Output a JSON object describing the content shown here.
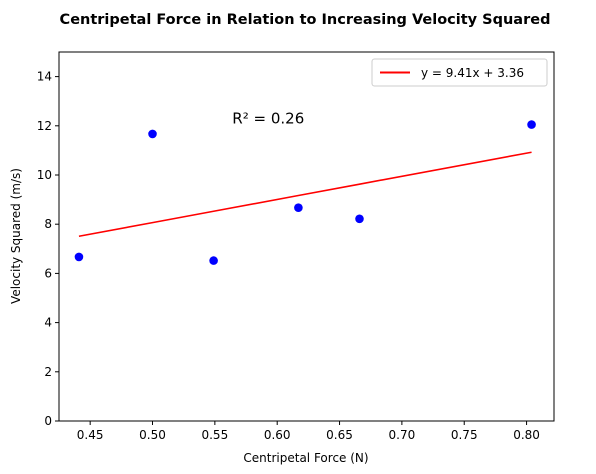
{
  "chart_data": {
    "type": "scatter",
    "title": "Centripetal Force in Relation to Increasing Velocity Squared",
    "xlabel": "Centripetal Force (N)",
    "ylabel": "Velocity Squared (m/s)",
    "xlim": [
      0.425,
      0.822
    ],
    "ylim": [
      0,
      15
    ],
    "xticks": [
      0.45,
      0.5,
      0.55,
      0.6,
      0.65,
      0.7,
      0.75,
      0.8
    ],
    "xtick_labels": [
      "0.45",
      "0.50",
      "0.55",
      "0.60",
      "0.65",
      "0.70",
      "0.75",
      "0.80"
    ],
    "yticks": [
      0,
      2,
      4,
      6,
      8,
      10,
      12,
      14
    ],
    "ytick_labels": [
      "0",
      "2",
      "4",
      "6",
      "8",
      "10",
      "12",
      "14"
    ],
    "grid": false,
    "points": {
      "color": "#0000ff",
      "x": [
        0.441,
        0.5,
        0.549,
        0.617,
        0.666,
        0.804
      ],
      "y": [
        6.67,
        11.67,
        6.52,
        8.67,
        8.22,
        12.05
      ]
    },
    "fit_line": {
      "label": "y = 9.41x + 3.36",
      "color": "#ff0000",
      "slope": 9.41,
      "intercept": 3.36,
      "x": [
        0.441,
        0.5,
        0.549,
        0.617,
        0.666,
        0.804
      ]
    },
    "annotation": {
      "text": "R² = 0.26",
      "x": 0.564,
      "y": 12.1
    },
    "legend": {
      "placement": "top-right"
    }
  }
}
